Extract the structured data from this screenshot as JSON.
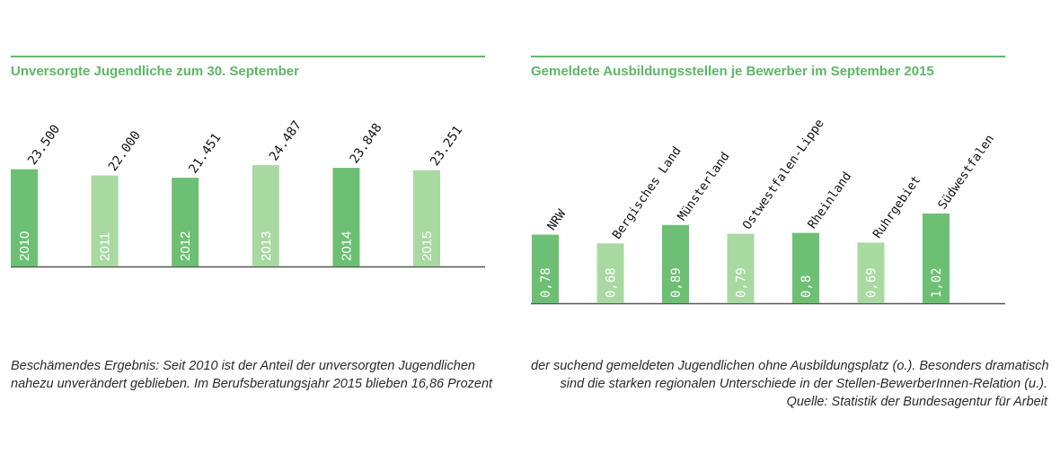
{
  "colors": {
    "accent": "#5fb86a",
    "bar_dark": "#6dbf73",
    "bar_light": "#a7d9a0",
    "axis": "#555555",
    "text": "#2b2b2b"
  },
  "chart_data": [
    {
      "type": "bar",
      "title": "Unversorgte Jugendliche zum 30. September",
      "categories": [
        "2010",
        "2011",
        "2012",
        "2013",
        "2014",
        "2015"
      ],
      "values": [
        23500,
        22000,
        21451,
        24487,
        23848,
        23251
      ],
      "value_labels": [
        "23.500",
        "22.000",
        "21.451",
        "24.487",
        "23.848",
        "23.251"
      ],
      "shades": [
        "dark",
        "light",
        "dark",
        "light",
        "dark",
        "light"
      ],
      "ylim": [
        0,
        29500
      ],
      "xlabel": "",
      "ylabel": "",
      "grid": false,
      "legend": "none"
    },
    {
      "type": "bar",
      "title": "Gemeldete Ausbildungsstellen je Bewerber im September 2015",
      "categories": [
        "NRW",
        "Bergisches Land",
        "Münsterland",
        "Ostwestfalen-Lippe",
        "Rheinland",
        "Ruhrgebiet",
        "Südwestfalen"
      ],
      "values": [
        0.78,
        0.68,
        0.89,
        0.79,
        0.8,
        0.69,
        1.02
      ],
      "value_labels": [
        "0,78",
        "0,68",
        "0,89",
        "0,79",
        "0,8",
        "0,69",
        "1,02"
      ],
      "shades": [
        "dark",
        "light",
        "dark",
        "light",
        "dark",
        "light",
        "dark"
      ],
      "ylim": [
        0,
        1.5
      ],
      "xlabel": "",
      "ylabel": "",
      "grid": false,
      "legend": "none"
    }
  ],
  "caption": {
    "left_line1": "Beschämendes Ergebnis: Seit 2010 ist der Anteil der unversorgten Jugendlichen",
    "left_line2": "nahezu unverändert geblieben. Im Berufsberatungsjahr 2015 blieben 16,86 Prozent",
    "right_line1": "der suchend gemeldeten Jugendlichen ohne Ausbildungsplatz (o.). Besonders dramatisch",
    "right_line2": "sind die starken regionalen Unterschiede in der Stellen-BewerberInnen-Relation (u.).",
    "source": "Quelle: Statistik der Bundesagentur für Arbeit"
  }
}
